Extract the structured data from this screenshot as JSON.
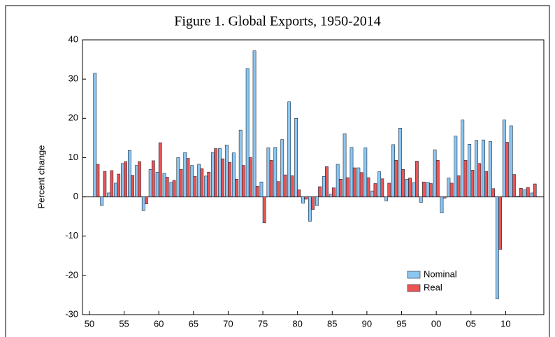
{
  "chart_data": {
    "type": "bar",
    "title": "Figure 1. Global Exports, 1950-2014",
    "y_label": "Percent change",
    "x": [
      1951,
      1952,
      1953,
      1954,
      1955,
      1956,
      1957,
      1958,
      1959,
      1960,
      1961,
      1962,
      1963,
      1964,
      1965,
      1966,
      1967,
      1968,
      1969,
      1970,
      1971,
      1972,
      1973,
      1974,
      1975,
      1976,
      1977,
      1978,
      1979,
      1980,
      1981,
      1982,
      1983,
      1984,
      1985,
      1986,
      1987,
      1988,
      1989,
      1990,
      1991,
      1992,
      1993,
      1994,
      1995,
      1996,
      1997,
      1998,
      1999,
      2000,
      2001,
      2002,
      2003,
      2004,
      2005,
      2006,
      2007,
      2008,
      2009,
      2010,
      2011,
      2012,
      2013,
      2014
    ],
    "series": [
      {
        "name": "Nominal",
        "color": "#8cc6f2",
        "values": [
          31.5,
          -2.2,
          1.0,
          3.5,
          8.5,
          11.8,
          8.0,
          -3.5,
          7.0,
          6.3,
          6.0,
          3.7,
          10.0,
          11.3,
          8.0,
          8.3,
          5.3,
          11.3,
          12.3,
          13.2,
          11.2,
          17.0,
          32.7,
          37.2,
          3.8,
          12.5,
          12.6,
          14.6,
          24.2,
          20.0,
          -1.6,
          -6.2,
          -2.2,
          5.2,
          0.7,
          8.3,
          16.1,
          12.6,
          7.4,
          12.5,
          1.5,
          6.4,
          -1.0,
          13.3,
          17.5,
          4.5,
          3.6,
          -1.4,
          3.7,
          12.0,
          -4.1,
          4.8,
          15.5,
          19.6,
          13.4,
          14.4,
          14.5,
          14.1,
          -26.0,
          19.6,
          18.1,
          0.2,
          1.8,
          1.0
        ]
      },
      {
        "name": "Real",
        "color": "#ec5454",
        "values": [
          8.3,
          6.5,
          6.7,
          5.8,
          9.0,
          5.5,
          9.0,
          -1.8,
          9.2,
          13.8,
          5.0,
          4.2,
          7.0,
          9.8,
          5.2,
          7.2,
          6.3,
          12.3,
          9.7,
          8.8,
          4.5,
          8.0,
          10.0,
          2.7,
          -6.6,
          9.3,
          3.9,
          5.6,
          5.4,
          1.8,
          -0.6,
          -3.2,
          2.6,
          7.7,
          2.3,
          4.5,
          4.9,
          7.4,
          6.2,
          4.9,
          3.4,
          4.6,
          3.5,
          9.3,
          7.0,
          4.8,
          9.1,
          3.8,
          3.4,
          9.3,
          -0.3,
          3.5,
          5.4,
          9.3,
          6.8,
          8.5,
          6.5,
          2.1,
          -13.4,
          13.9,
          5.7,
          2.2,
          2.4,
          3.3
        ]
      }
    ],
    "xlim": [
      1949,
      2015.5
    ],
    "xticks": [
      {
        "value": 1950,
        "label": "50"
      },
      {
        "value": 1955,
        "label": "55"
      },
      {
        "value": 1960,
        "label": "60"
      },
      {
        "value": 1965,
        "label": "65"
      },
      {
        "value": 1970,
        "label": "70"
      },
      {
        "value": 1975,
        "label": "75"
      },
      {
        "value": 1980,
        "label": "80"
      },
      {
        "value": 1985,
        "label": "85"
      },
      {
        "value": 1990,
        "label": "90"
      },
      {
        "value": 1995,
        "label": "95"
      },
      {
        "value": 2000,
        "label": "00"
      },
      {
        "value": 2005,
        "label": "05"
      },
      {
        "value": 2010,
        "label": "10"
      }
    ],
    "ylim": [
      -30,
      40
    ],
    "yticks": [
      -30,
      -20,
      -10,
      0,
      10,
      20,
      30,
      40
    ]
  }
}
